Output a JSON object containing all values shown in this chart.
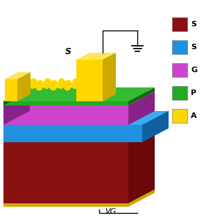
{
  "colors": {
    "Si_front": "#8B1010",
    "Si_right": "#6B0808",
    "Si_top": "#a01515",
    "SiO2_front": "#2090E0",
    "SiO2_right": "#1060a0",
    "SiO2_top": "#40aaee",
    "graphene_front": "#cc44cc",
    "graphene_right": "#882288",
    "graphene_top": "#dd55dd",
    "green_front": "#22aa22",
    "green_right": "#156615",
    "green_top": "#33bb33",
    "Au_front": "#FFD700",
    "Au_right": "#ccaa00",
    "Au_top": "#FFE55C",
    "Au_dot": "#FFD700",
    "Au_strip": "#ccaa00",
    "background": "#ffffff"
  },
  "legend_colors": [
    "#8B1010",
    "#2090E0",
    "#cc44cc",
    "#22aa22",
    "#FFD700"
  ],
  "legend_labels": [
    "S",
    "S",
    "G",
    "P",
    "A"
  ],
  "label_S": "S",
  "label_VG": "VG"
}
